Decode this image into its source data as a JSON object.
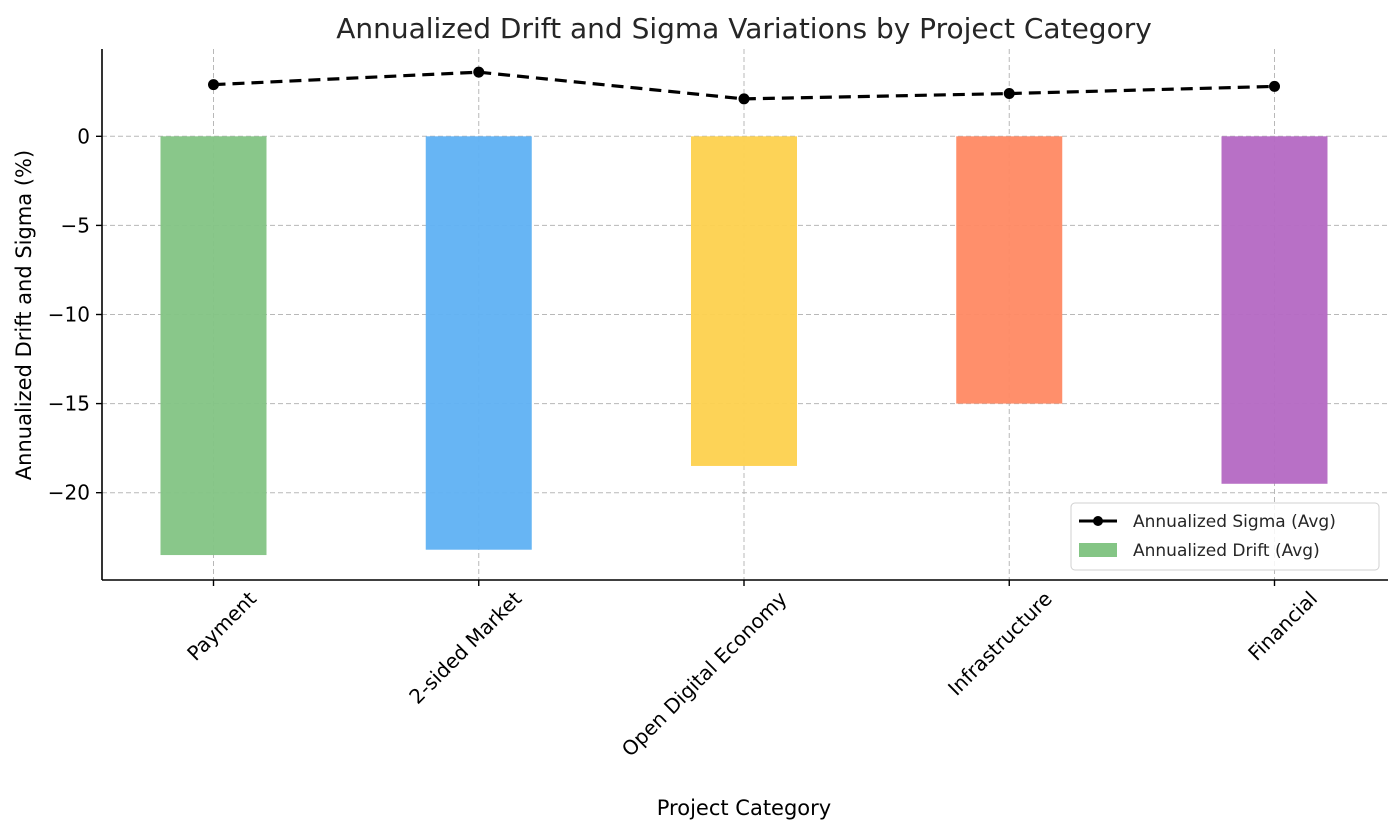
{
  "chart_data": {
    "type": "bar",
    "title": "Annualized Drift and Sigma Variations by Project Category",
    "xlabel": "Project Category",
    "ylabel": "Annualized Drift and Sigma (%)",
    "ylim": [
      -24.9,
      4.9
    ],
    "yticks": [
      0,
      -5,
      -10,
      -15,
      -20
    ],
    "ytick_labels": [
      "0",
      "−5",
      "−10",
      "−15",
      "−20"
    ],
    "grid": true,
    "legend_position": "bottom-right",
    "categories": [
      "Payment",
      "2-sided Market",
      "Open Digital Economy",
      "Infrastructure",
      "Financial"
    ],
    "series": [
      {
        "name": "Annualized Drift (Avg)",
        "type": "bar",
        "values": [
          -23.5,
          -23.2,
          -18.5,
          -15.0,
          -19.5
        ],
        "colors": [
          "#84c585",
          "#61b2f4",
          "#fdd150",
          "#ff8a65",
          "#b56ac4"
        ]
      },
      {
        "name": "Annualized Sigma (Avg)",
        "type": "line",
        "values": [
          2.9,
          3.6,
          2.1,
          2.4,
          2.8
        ],
        "color": "#000000",
        "style": "dashed",
        "marker": "circle"
      }
    ]
  }
}
